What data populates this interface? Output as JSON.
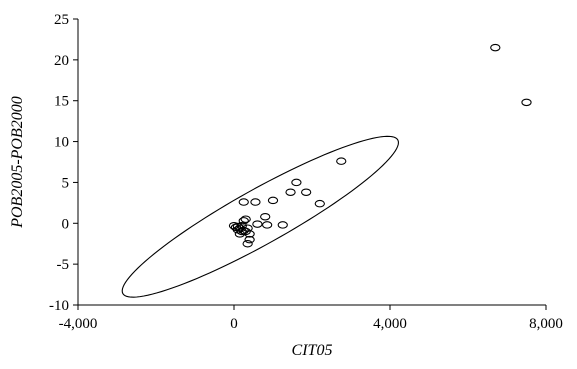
{
  "chart_data": {
    "type": "scatter",
    "xlabel": "CIT05",
    "ylabel": "POB2005-POB2000",
    "xlim": [
      -4000,
      8000
    ],
    "ylim": [
      -10,
      25
    ],
    "x_ticks": [
      -4000,
      0,
      4000,
      8000
    ],
    "x_tick_labels": [
      "-4,000",
      "0",
      "4,000",
      "8,000"
    ],
    "y_ticks": [
      -10,
      -5,
      0,
      5,
      10,
      15,
      20,
      25
    ],
    "y_tick_labels": [
      "-10",
      "-5",
      "0",
      "5",
      "10",
      "15",
      "20",
      "25"
    ],
    "grid": false,
    "legend": "none",
    "points": [
      {
        "x": 6700,
        "y": 21.5
      },
      {
        "x": 7500,
        "y": 14.8
      },
      {
        "x": 2750,
        "y": 7.6
      },
      {
        "x": 1600,
        "y": 5.0
      },
      {
        "x": 1450,
        "y": 3.8
      },
      {
        "x": 1850,
        "y": 3.8
      },
      {
        "x": 2200,
        "y": 2.4
      },
      {
        "x": 250,
        "y": 2.6
      },
      {
        "x": 550,
        "y": 2.6
      },
      {
        "x": 1000,
        "y": 2.8
      },
      {
        "x": 800,
        "y": 0.8
      },
      {
        "x": 300,
        "y": 0.5
      },
      {
        "x": 250,
        "y": 0.3
      },
      {
        "x": 600,
        "y": -0.1
      },
      {
        "x": 850,
        "y": -0.2
      },
      {
        "x": 1250,
        "y": -0.2
      },
      {
        "x": 0,
        "y": -0.3
      },
      {
        "x": 50,
        "y": -0.5
      },
      {
        "x": 100,
        "y": -0.4
      },
      {
        "x": 150,
        "y": -0.6
      },
      {
        "x": 200,
        "y": -0.3
      },
      {
        "x": 350,
        "y": -0.6
      },
      {
        "x": 100,
        "y": -0.8
      },
      {
        "x": 200,
        "y": -1.0
      },
      {
        "x": 300,
        "y": -1.0
      },
      {
        "x": 400,
        "y": -1.3
      },
      {
        "x": 150,
        "y": -1.3
      },
      {
        "x": 400,
        "y": -2.0
      },
      {
        "x": 350,
        "y": -2.5
      },
      {
        "x": 250,
        "y": -0.9
      }
    ],
    "confidence_ellipse": {
      "endpoint_a": {
        "x": -2850,
        "y": -8.6
      },
      "endpoint_b": {
        "x": 4200,
        "y": 10.2
      },
      "minor_semi_axis_x_units": 700
    }
  }
}
